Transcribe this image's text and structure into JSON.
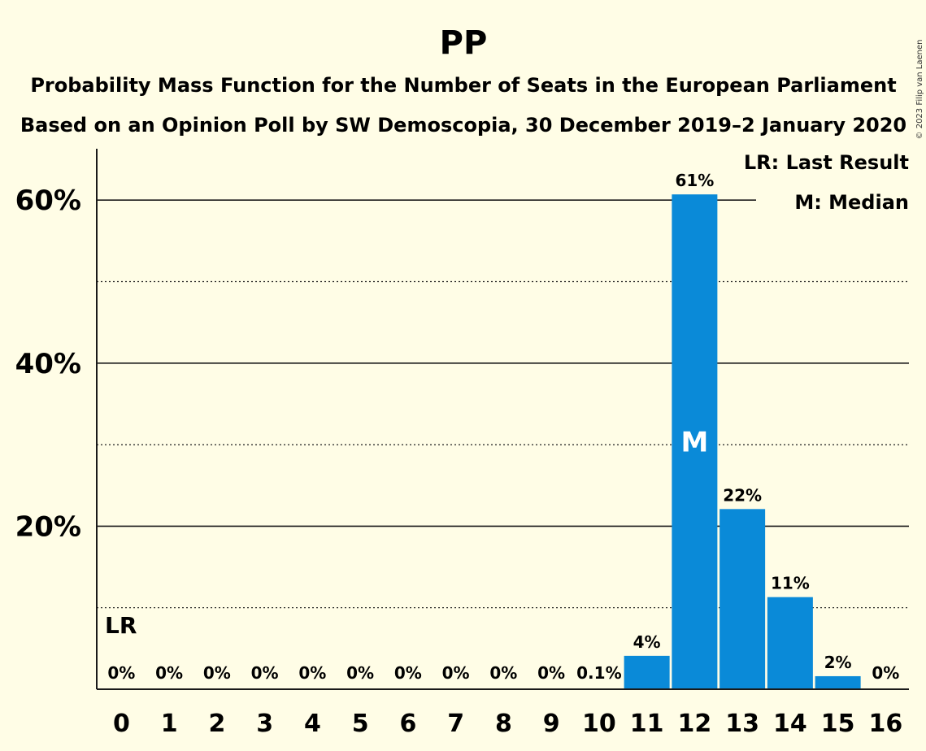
{
  "title": "PP",
  "subtitle1": "Probability Mass Function for the Number of Seats in the European Parliament",
  "subtitle2": "Based on an Opinion Poll by SW Demoscopia, 30 December 2019–2 January 2020",
  "copyright": "© 2023 Filip van Laenen",
  "legend": {
    "lr": "LR: Last Result",
    "median": "M: Median"
  },
  "markers": {
    "lr_label": "LR",
    "median_label": "M"
  },
  "colors": {
    "bar": "#0a8ad8",
    "background": "#fffde6",
    "text": "#1a1a1a"
  },
  "chart_data": {
    "type": "bar",
    "categories": [
      "0",
      "1",
      "2",
      "3",
      "4",
      "5",
      "6",
      "7",
      "8",
      "9",
      "10",
      "11",
      "12",
      "13",
      "14",
      "15",
      "16"
    ],
    "values": [
      0,
      0,
      0,
      0,
      0,
      0,
      0,
      0,
      0,
      0,
      0.1,
      4.1,
      60.7,
      22.1,
      11.3,
      1.6,
      0
    ],
    "data_labels": [
      "0%",
      "0%",
      "0%",
      "0%",
      "0%",
      "0%",
      "0%",
      "0%",
      "0%",
      "0%",
      "0.1%",
      "4%",
      "61%",
      "22%",
      "11%",
      "2%",
      "0%"
    ],
    "yticks": [
      20,
      40,
      60
    ],
    "ytick_labels": [
      "20%",
      "40%",
      "60%"
    ],
    "minor_gridlines": [
      10,
      30,
      50
    ],
    "ylim": [
      0,
      66
    ],
    "last_result_seat": "0",
    "median_seat": "12",
    "legend_position": "top-right"
  }
}
